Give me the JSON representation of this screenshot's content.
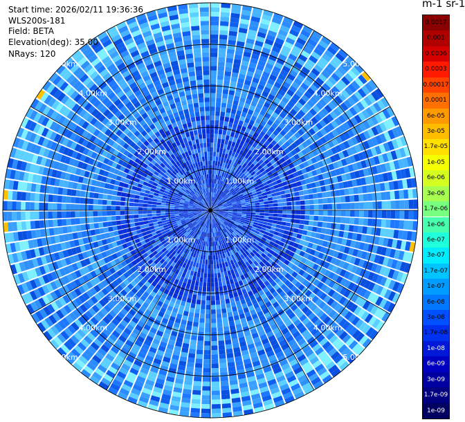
{
  "header": {
    "start_time": "Start time: 2026/02/11 19:36:36",
    "instrument": "WLS200s-181",
    "field": "Field: BETA",
    "elevation": "Elevation(deg): 35.00",
    "nrays": "NRays: 120"
  },
  "colorbar": {
    "unit_label": "m-1 sr-1",
    "ticks": [
      "0.0017",
      "0.001",
      "0.0006",
      "0.0003",
      "0.00017",
      "0.0001",
      "6e-05",
      "3e-05",
      "1.7e-05",
      "1e-05",
      "6e-06",
      "3e-06",
      "1.7e-06",
      "1e-06",
      "6e-07",
      "3e-07",
      "1.7e-07",
      "1e-07",
      "6e-08",
      "3e-08",
      "1.7e-08",
      "1e-08",
      "6e-09",
      "3e-09",
      "1.7e-09",
      "1e-09"
    ],
    "colors": [
      "#8b0000",
      "#b00000",
      "#d40000",
      "#ff1a00",
      "#ff4400",
      "#ff7000",
      "#ff9a00",
      "#ffbd00",
      "#ffe000",
      "#f5ff00",
      "#d4ff20",
      "#a8ff50",
      "#78ff80",
      "#48ffae",
      "#20ffdc",
      "#00ecff",
      "#00c4ff",
      "#009cff",
      "#0078ff",
      "#0050ff",
      "#0030f0",
      "#0018d8",
      "#0000c0",
      "#0000a0",
      "#000080",
      "#000060"
    ],
    "light_text_from_index": 21
  },
  "range_rings": {
    "labels": [
      "1.00km",
      "2.00km",
      "3.00km",
      "4.00km",
      "5.00km"
    ]
  }
}
